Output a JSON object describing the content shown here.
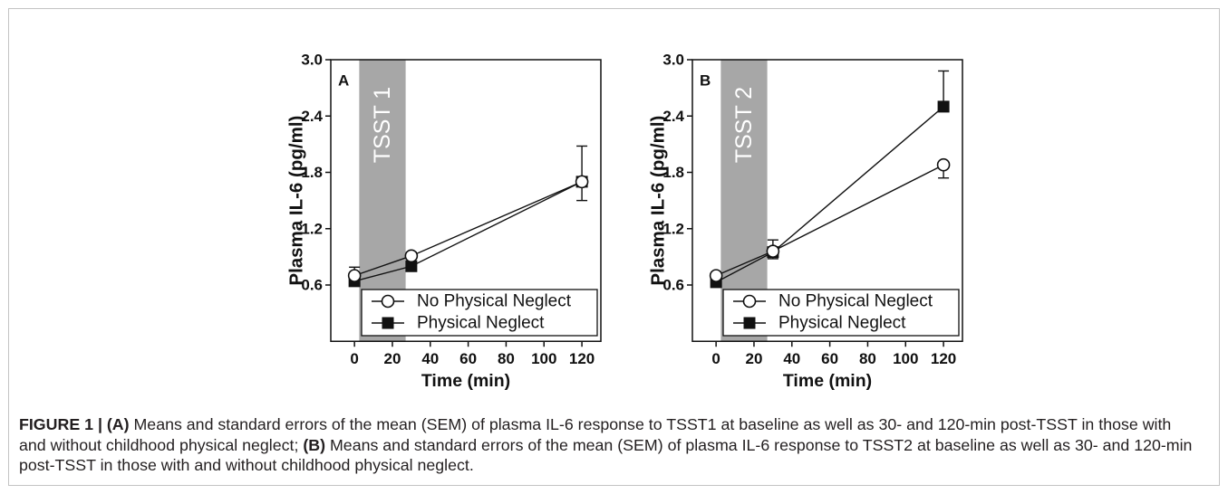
{
  "colors": {
    "frame_border": "#c4c4c4",
    "ink": "#111111",
    "caption_text": "#231f20"
  },
  "chart_data": [
    {
      "type": "line",
      "panel_label": "A",
      "xlabel": "Time (min)",
      "ylabel": "Plasma IL-6 (pg/ml)",
      "xlim": [
        -12.5,
        130
      ],
      "ylim": [
        0,
        3.0
      ],
      "xticks": [
        0,
        20,
        40,
        60,
        80,
        100,
        120
      ],
      "xtick_labels": [
        "0",
        "20",
        "40",
        "60",
        "80",
        "100",
        "120"
      ],
      "yticks": [
        0.6,
        1.2,
        1.8,
        2.4,
        3.0
      ],
      "ytick_labels": [
        "0.6",
        "1.2",
        "1.8",
        "2.4",
        "3.0"
      ],
      "grid": false,
      "legend_position": "bottom-right",
      "shaded_interval": {
        "label": "TSST 1",
        "x": [
          2.5,
          27
        ],
        "color": "#a7a7a7"
      },
      "series": [
        {
          "name": "No Physical Neglect",
          "marker": "open-circle",
          "x": [
            0,
            30,
            120
          ],
          "y": [
            0.7,
            0.91,
            1.7
          ],
          "sem": [
            0.05,
            0.06,
            0.2
          ],
          "error_direction": "down"
        },
        {
          "name": "Physical Neglect",
          "marker": "filled-square",
          "x": [
            0,
            30,
            120
          ],
          "y": [
            0.64,
            0.8,
            1.7
          ],
          "sem": [
            0.15,
            0.15,
            0.38
          ],
          "error_direction": "up"
        }
      ]
    },
    {
      "type": "line",
      "panel_label": "B",
      "xlabel": "Time (min)",
      "ylabel": "Plasma IL-6 (pg/ml)",
      "xlim": [
        -12.5,
        130
      ],
      "ylim": [
        0,
        3.0
      ],
      "xticks": [
        0,
        20,
        40,
        60,
        80,
        100,
        120
      ],
      "xtick_labels": [
        "0",
        "20",
        "40",
        "60",
        "80",
        "100",
        "120"
      ],
      "yticks": [
        0.6,
        1.2,
        1.8,
        2.4,
        3.0
      ],
      "ytick_labels": [
        "0.6",
        "1.2",
        "1.8",
        "2.4",
        "3.0"
      ],
      "grid": false,
      "legend_position": "bottom-right",
      "shaded_interval": {
        "label": "TSST 2",
        "x": [
          2.5,
          27
        ],
        "color": "#a7a7a7"
      },
      "series": [
        {
          "name": "No Physical Neglect",
          "marker": "open-circle",
          "x": [
            0,
            30,
            120
          ],
          "y": [
            0.7,
            0.96,
            1.88
          ],
          "sem": [
            0.04,
            0.08,
            0.14
          ],
          "error_direction": "down"
        },
        {
          "name": "Physical Neglect",
          "marker": "filled-square",
          "x": [
            0,
            30,
            120
          ],
          "y": [
            0.63,
            0.95,
            2.5
          ],
          "sem": [
            0.05,
            0.13,
            0.38
          ],
          "error_direction": "up"
        }
      ]
    }
  ],
  "caption": {
    "figure_label": "FIGURE 1 | ",
    "panel_a_tag": "(A)",
    "line_1_text": " Means and standard errors of the mean (SEM) of plasma IL-6 response to TSST1 at baseline as well as 30- and 120-min post-TSST in those with",
    "line_2_text_start": "and without childhood physical neglect; ",
    "panel_b_tag": "(B)",
    "line_2_text_end": " Means and standard errors of the mean (SEM) of plasma IL-6 response to TSST2 at baseline as well as 30- and 120-min",
    "line_3_text": "post-TSST in those with and without childhood physical neglect."
  }
}
